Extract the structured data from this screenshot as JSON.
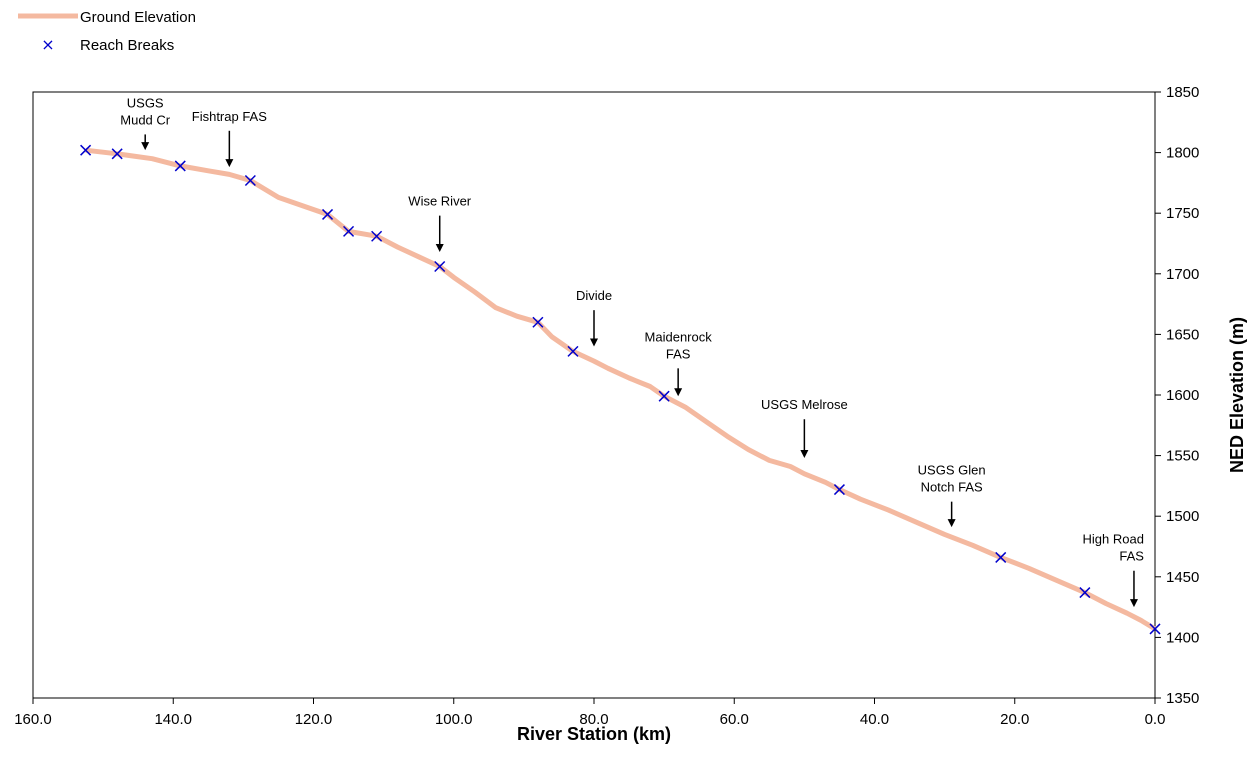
{
  "chart_data": {
    "type": "line",
    "xlabel": "River Station (km)",
    "ylabel": "NED Elevation (m)",
    "xlim": [
      160,
      0
    ],
    "ylim": [
      1350,
      1850
    ],
    "x_reversed": true,
    "y_axis_side": "right",
    "x_ticks": [
      "160.0",
      "140.0",
      "120.0",
      "100.0",
      "80.0",
      "60.0",
      "40.0",
      "20.0",
      "0.0"
    ],
    "y_ticks": [
      "1350",
      "1400",
      "1450",
      "1500",
      "1550",
      "1600",
      "1650",
      "1700",
      "1750",
      "1800",
      "1850"
    ],
    "grid": false,
    "legend_position": "top-left",
    "series": [
      {
        "name": "Ground Elevation",
        "kind": "line",
        "color": "#f4b9a0",
        "x": [
          152.5,
          148,
          143,
          139,
          135,
          132,
          129,
          125,
          121,
          118,
          115,
          111,
          108,
          105,
          102,
          100,
          97,
          94,
          91,
          88,
          86,
          83,
          80,
          78,
          75,
          72,
          70,
          67,
          64,
          61,
          58,
          55,
          52,
          50,
          47,
          45,
          42,
          38,
          34,
          30,
          26,
          22,
          18,
          14,
          10,
          7,
          4,
          2,
          0
        ],
        "y": [
          1802,
          1799,
          1795,
          1789,
          1785,
          1782,
          1777,
          1763,
          1755,
          1749,
          1735,
          1731,
          1722,
          1714,
          1706,
          1697,
          1685,
          1672,
          1665,
          1660,
          1648,
          1636,
          1628,
          1622,
          1614,
          1607,
          1599,
          1590,
          1578,
          1566,
          1555,
          1546,
          1541,
          1535,
          1528,
          1522,
          1514,
          1505,
          1495,
          1485,
          1476,
          1466,
          1457,
          1447,
          1437,
          1428,
          1420,
          1414,
          1407
        ]
      },
      {
        "name": "Reach Breaks",
        "kind": "marker",
        "marker": "x",
        "color": "#0000cc",
        "x": [
          152.5,
          148,
          139,
          129,
          118,
          115,
          111,
          102,
          88,
          83,
          70,
          45,
          22,
          10,
          0
        ],
        "y": [
          1802,
          1799,
          1789,
          1777,
          1749,
          1735,
          1731,
          1706,
          1660,
          1636,
          1599,
          1522,
          1466,
          1437,
          1407
        ]
      }
    ],
    "annotations": [
      {
        "lines": [
          "USGS",
          "Mudd Cr"
        ],
        "x": 144,
        "arrow_top": 1815,
        "arrow_tip": 1802
      },
      {
        "lines": [
          "Fishtrap FAS"
        ],
        "x": 132,
        "arrow_top": 1818,
        "arrow_tip": 1788
      },
      {
        "lines": [
          "Wise River"
        ],
        "x": 102,
        "arrow_top": 1748,
        "arrow_tip": 1718
      },
      {
        "lines": [
          "Divide"
        ],
        "x": 80,
        "arrow_top": 1670,
        "arrow_tip": 1640
      },
      {
        "lines": [
          "Maidenrock",
          "FAS"
        ],
        "x": 68,
        "arrow_top": 1622,
        "arrow_tip": 1599
      },
      {
        "lines": [
          "USGS Melrose"
        ],
        "x": 50,
        "arrow_top": 1580,
        "arrow_tip": 1548
      },
      {
        "lines": [
          "USGS Glen",
          "Notch FAS"
        ],
        "x": 29,
        "arrow_top": 1512,
        "arrow_tip": 1491
      },
      {
        "lines": [
          "High Road",
          "FAS"
        ],
        "x": 3,
        "arrow_top": 1455,
        "arrow_tip": 1425
      }
    ]
  }
}
